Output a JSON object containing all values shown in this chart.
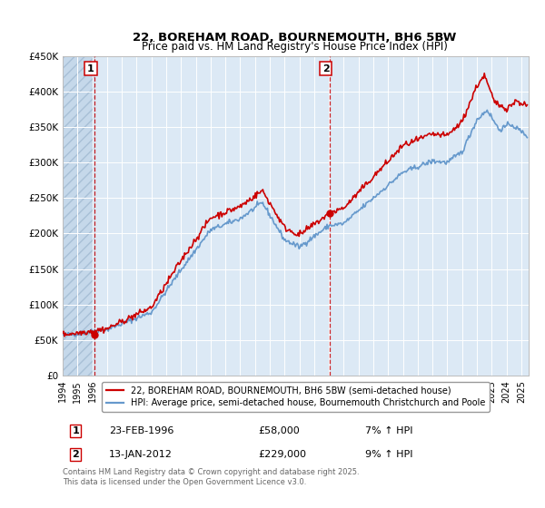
{
  "title_line1": "22, BOREHAM ROAD, BOURNEMOUTH, BH6 5BW",
  "title_line2": "Price paid vs. HM Land Registry's House Price Index (HPI)",
  "ylim": [
    0,
    450000
  ],
  "yticks": [
    0,
    50000,
    100000,
    150000,
    200000,
    250000,
    300000,
    350000,
    400000,
    450000
  ],
  "ytick_labels": [
    "£0",
    "£50K",
    "£100K",
    "£150K",
    "£200K",
    "£250K",
    "£300K",
    "£350K",
    "£400K",
    "£450K"
  ],
  "xlim_start": 1994.0,
  "xlim_end": 2025.5,
  "xticks": [
    1994,
    1995,
    1996,
    1997,
    1998,
    1999,
    2000,
    2001,
    2002,
    2003,
    2004,
    2005,
    2006,
    2007,
    2008,
    2009,
    2010,
    2011,
    2012,
    2013,
    2014,
    2015,
    2016,
    2017,
    2018,
    2019,
    2020,
    2021,
    2022,
    2023,
    2024,
    2025
  ],
  "background_color": "#ffffff",
  "plot_bg_color": "#dce9f5",
  "grid_color": "#ffffff",
  "hatch_color": "#c5d8ea",
  "sale1_x": 1996.15,
  "sale1_y": 58000,
  "sale2_x": 2012.04,
  "sale2_y": 229000,
  "legend_entry1": "22, BOREHAM ROAD, BOURNEMOUTH, BH6 5BW (semi-detached house)",
  "legend_entry2": "HPI: Average price, semi-detached house, Bournemouth Christchurch and Poole",
  "annotation1_label": "1",
  "annotation2_label": "2",
  "footnote": "Contains HM Land Registry data © Crown copyright and database right 2025.\nThis data is licensed under the Open Government Licence v3.0.",
  "line_color_sale": "#cc0000",
  "line_color_hpi": "#6699cc",
  "vline_color": "#cc0000"
}
